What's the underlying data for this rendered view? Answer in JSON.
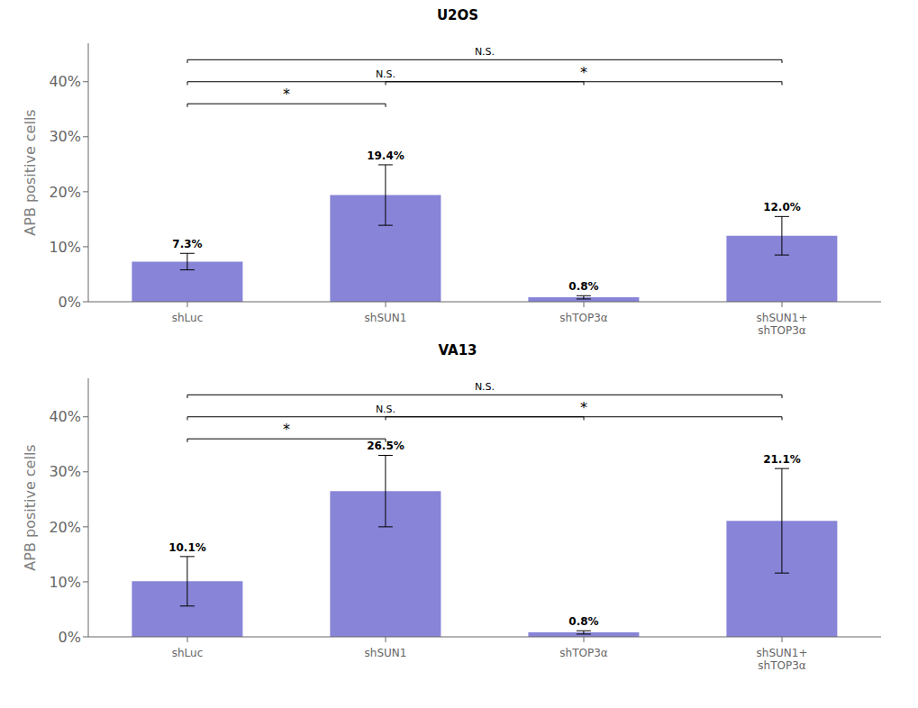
{
  "chart_data": [
    {
      "type": "bar",
      "title": "U2OS",
      "ylabel": "APB positive cells",
      "categories": [
        "shLuc",
        "shSUN1",
        "shTOP3α",
        "shSUN1+\nshTOP3α"
      ],
      "values": [
        7.3,
        19.4,
        0.8,
        12.0
      ],
      "errors": [
        1.5,
        5.5,
        0.3,
        3.5
      ],
      "value_labels": [
        "7.3%",
        "19.4%",
        "0.8%",
        "12.0%"
      ],
      "data_labels": true,
      "color": "#8884d8",
      "ylim": [
        0,
        47
      ],
      "yticks": [
        {
          "value": 0,
          "label": "0%"
        },
        {
          "value": 10,
          "label": "10%"
        },
        {
          "value": 20,
          "label": "20%"
        },
        {
          "value": 30,
          "label": "30%"
        },
        {
          "value": 40,
          "label": "40%"
        }
      ],
      "significance": [
        {
          "between": [
            "shLuc",
            "shSUN1"
          ],
          "y": 36,
          "label": "*"
        },
        {
          "between": [
            "shLuc",
            "shTOP3α"
          ],
          "y": 40,
          "label": "N.S."
        },
        {
          "between": [
            "shLuc",
            "shSUN1+\nshTOP3α"
          ],
          "y": 44,
          "label": "N.S."
        },
        {
          "between": [
            "shSUN1",
            "shSUN1+\nshTOP3α"
          ],
          "y": 40,
          "label": "*"
        }
      ]
    },
    {
      "type": "bar",
      "title": "VA13",
      "ylabel": "APB positive cells",
      "categories": [
        "shLuc",
        "shSUN1",
        "shTOP3α",
        "shSUN1+\nshTOP3α"
      ],
      "values": [
        10.1,
        26.5,
        0.8,
        21.1
      ],
      "errors": [
        4.5,
        6.5,
        0.3,
        9.5
      ],
      "value_labels": [
        "10.1%",
        "26.5%",
        "0.8%",
        "21.1%"
      ],
      "data_labels": true,
      "color": "#8884d8",
      "ylim": [
        0,
        47
      ],
      "yticks": [
        {
          "value": 0,
          "label": "0%"
        },
        {
          "value": 10,
          "label": "10%"
        },
        {
          "value": 20,
          "label": "20%"
        },
        {
          "value": 30,
          "label": "30%"
        },
        {
          "value": 40,
          "label": "40%"
        }
      ],
      "significance": [
        {
          "between": [
            "shLuc",
            "shSUN1"
          ],
          "y": 36,
          "label": "*"
        },
        {
          "between": [
            "shLuc",
            "shTOP3α"
          ],
          "y": 40,
          "label": "N.S."
        },
        {
          "between": [
            "shLuc",
            "shSUN1+\nshTOP3α"
          ],
          "y": 44,
          "label": "N.S."
        },
        {
          "between": [
            "shSUN1",
            "shSUN1+\nshTOP3α"
          ],
          "y": 40,
          "label": "*"
        }
      ]
    }
  ]
}
